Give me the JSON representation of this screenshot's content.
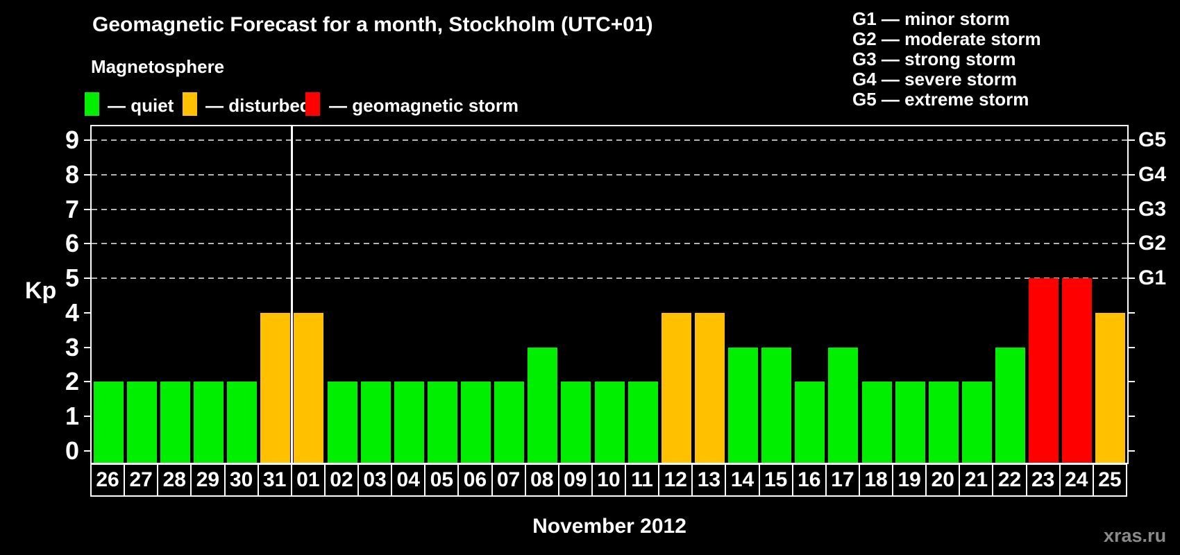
{
  "title": "Geomagnetic Forecast for a month, Stockholm (UTC+01)",
  "watermark": "xras.ru",
  "legend": {
    "title": "Magnetosphere",
    "items": [
      {
        "name": "quiet",
        "label": "— quiet",
        "color": "#00ee00"
      },
      {
        "name": "disturbed",
        "label": "— disturbed",
        "color": "#ffc000"
      },
      {
        "name": "storm",
        "label": "— geomagnetic storm",
        "color": "#fe0000"
      }
    ]
  },
  "g_scale_legend": [
    "G1 — minor storm",
    "G2 — moderate storm",
    "G3 — strong storm",
    "G4 — severe storm",
    "G5 — extreme storm"
  ],
  "chart_data": {
    "type": "bar",
    "title": "Geomagnetic Forecast for a month, Stockholm (UTC+01)",
    "xlabel": "November 2012",
    "ylabel": "Kp",
    "ylim": [
      0,
      9
    ],
    "yticks": [
      0,
      1,
      2,
      3,
      4,
      5,
      6,
      7,
      8,
      9
    ],
    "gridlines_at_kp": [
      5,
      6,
      7,
      8,
      9
    ],
    "grid": "dashed horizontal lines at Kp 5-9 only",
    "legend_position": "top",
    "right_axis": [
      {
        "label": "G1",
        "kp": 5
      },
      {
        "label": "G2",
        "kp": 6
      },
      {
        "label": "G3",
        "kp": 7
      },
      {
        "label": "G4",
        "kp": 8
      },
      {
        "label": "G5",
        "kp": 9
      }
    ],
    "month_divider_after_index": 5,
    "categories": [
      "26",
      "27",
      "28",
      "29",
      "30",
      "31",
      "01",
      "02",
      "03",
      "04",
      "05",
      "06",
      "07",
      "08",
      "09",
      "10",
      "11",
      "12",
      "13",
      "14",
      "15",
      "16",
      "17",
      "18",
      "19",
      "20",
      "21",
      "22",
      "23",
      "24",
      "25"
    ],
    "values": [
      2,
      2,
      2,
      2,
      2,
      4,
      4,
      2,
      2,
      2,
      2,
      2,
      2,
      3,
      2,
      2,
      2,
      4,
      4,
      3,
      3,
      2,
      3,
      2,
      2,
      2,
      2,
      3,
      5,
      5,
      4
    ],
    "statuses": [
      "quiet",
      "quiet",
      "quiet",
      "quiet",
      "quiet",
      "disturbed",
      "disturbed",
      "quiet",
      "quiet",
      "quiet",
      "quiet",
      "quiet",
      "quiet",
      "quiet",
      "quiet",
      "quiet",
      "quiet",
      "disturbed",
      "disturbed",
      "quiet",
      "quiet",
      "quiet",
      "quiet",
      "quiet",
      "quiet",
      "quiet",
      "quiet",
      "quiet",
      "storm",
      "storm",
      "disturbed"
    ]
  },
  "colors": {
    "background": "#000000",
    "text": "#ffffff",
    "quiet": "#00ee00",
    "disturbed": "#ffc000",
    "storm": "#fe0000",
    "gridline": "#b4b4b4",
    "watermark": "#8a8a8a"
  }
}
